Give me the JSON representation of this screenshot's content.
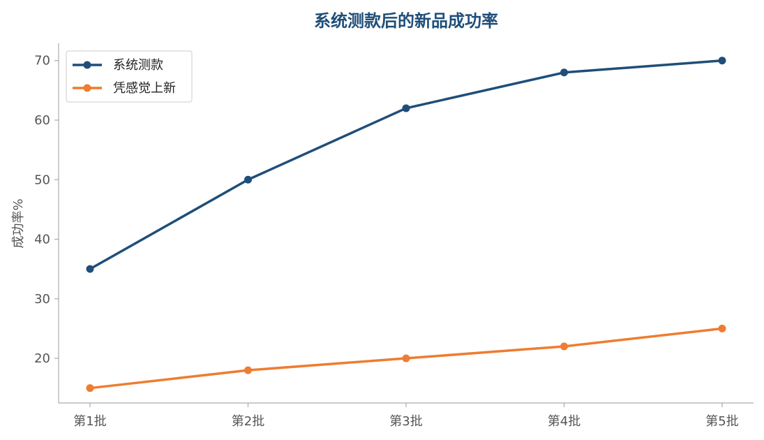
{
  "chart_data": {
    "type": "line",
    "title": "系统测款后的新品成功率",
    "xlabel": "",
    "ylabel": "成功率%",
    "categories": [
      "第1批",
      "第2批",
      "第3批",
      "第4批",
      "第5批"
    ],
    "ylim": [
      12.5,
      72.9
    ],
    "yticks": [
      20,
      30,
      40,
      50,
      60,
      70
    ],
    "grid": false,
    "legend_position": "top-left",
    "series": [
      {
        "name": "系统测款",
        "values": [
          35,
          50,
          62,
          68,
          70
        ],
        "color": "#1f4e79"
      },
      {
        "name": "凭感觉上新",
        "values": [
          15,
          18,
          20,
          22,
          25
        ],
        "color": "#ed7d31"
      }
    ]
  },
  "colors": {
    "title": "#1f4e79",
    "axis": "#aaaaaa",
    "tick_text": "#555555"
  }
}
